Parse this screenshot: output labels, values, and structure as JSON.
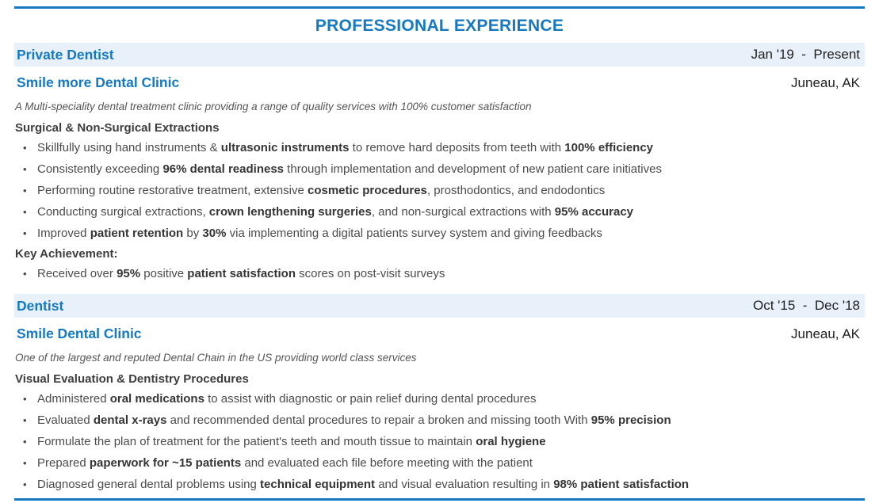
{
  "palette": {
    "accent": "#1579c2",
    "bar_bg": "#e8f1f9",
    "body_text": "#4b4b4b",
    "bold_text": "#353535",
    "dark_text": "#1f1f1f",
    "muted_italic": "#555555"
  },
  "section": {
    "title": "PROFESSIONAL EXPERIENCE"
  },
  "entries": [
    {
      "title": "Private Dentist",
      "dates": "Jan '19  -  Present",
      "company": "Smile more Dental Clinic",
      "location": "Juneau, AK",
      "description": "A Multi-speciality dental treatment clinic providing a range of quality services with 100% customer satisfaction",
      "subheading": "Surgical & Non-Surgical Extractions",
      "bullets": [
        [
          {
            "text": "Skillfully using hand instruments & ",
            "bold": false
          },
          {
            "text": "ultrasonic instruments",
            "bold": true
          },
          {
            "text": " to remove hard deposits from teeth with ",
            "bold": false
          },
          {
            "text": "100% efficiency",
            "bold": true
          }
        ],
        [
          {
            "text": "Consistently exceeding ",
            "bold": false
          },
          {
            "text": "96% dental readiness",
            "bold": true
          },
          {
            "text": " through implementation and development of new patient care initiatives",
            "bold": false
          }
        ],
        [
          {
            "text": "Performing routine restorative treatment, extensive ",
            "bold": false
          },
          {
            "text": "cosmetic procedures",
            "bold": true
          },
          {
            "text": ", prosthodontics, and endodontics",
            "bold": false
          }
        ],
        [
          {
            "text": "Conducting surgical extractions, ",
            "bold": false
          },
          {
            "text": "crown lengthening surgeries",
            "bold": true
          },
          {
            "text": ", and non-surgical extractions with ",
            "bold": false
          },
          {
            "text": "95% accuracy",
            "bold": true
          }
        ],
        [
          {
            "text": "Improved ",
            "bold": false
          },
          {
            "text": "patient retention",
            "bold": true
          },
          {
            "text": " by ",
            "bold": false
          },
          {
            "text": "30%",
            "bold": true
          },
          {
            "text": " via implementing a digital patients survey system and giving feedbacks",
            "bold": false
          }
        ]
      ],
      "key_achievement_label": "Key Achievement:",
      "key_bullets": [
        [
          {
            "text": "Received over ",
            "bold": false
          },
          {
            "text": "95%",
            "bold": true
          },
          {
            "text": " positive ",
            "bold": false
          },
          {
            "text": "patient satisfaction",
            "bold": true
          },
          {
            "text": " scores on post-visit surveys",
            "bold": false
          }
        ]
      ]
    },
    {
      "title": "Dentist",
      "dates": "Oct '15  -  Dec '18",
      "company": "Smile Dental Clinic",
      "location": "Juneau, AK",
      "description": "One of the largest and reputed Dental Chain in the US providing world class services",
      "subheading": "Visual Evaluation & Dentistry Procedures",
      "bullets": [
        [
          {
            "text": "Administered ",
            "bold": false
          },
          {
            "text": "oral medications",
            "bold": true
          },
          {
            "text": " to assist with diagnostic or pain relief during dental procedures",
            "bold": false
          }
        ],
        [
          {
            "text": "Evaluated ",
            "bold": false
          },
          {
            "text": "dental x-rays",
            "bold": true
          },
          {
            "text": " and recommended dental procedures to repair a broken and missing tooth With ",
            "bold": false
          },
          {
            "text": "95% precision",
            "bold": true
          }
        ],
        [
          {
            "text": "Formulate the plan of treatment for the patient's teeth and mouth tissue to maintain ",
            "bold": false
          },
          {
            "text": "oral hygiene",
            "bold": true
          }
        ],
        [
          {
            "text": "Prepared ",
            "bold": false
          },
          {
            "text": "paperwork for ~15 patients",
            "bold": true
          },
          {
            "text": " and evaluated each file before meeting with the patient",
            "bold": false
          }
        ],
        [
          {
            "text": "Diagnosed general dental problems using ",
            "bold": false
          },
          {
            "text": "technical equipment",
            "bold": true
          },
          {
            "text": " and visual evaluation resulting in ",
            "bold": false
          },
          {
            "text": "98% patient satisfaction",
            "bold": true
          }
        ]
      ]
    }
  ]
}
